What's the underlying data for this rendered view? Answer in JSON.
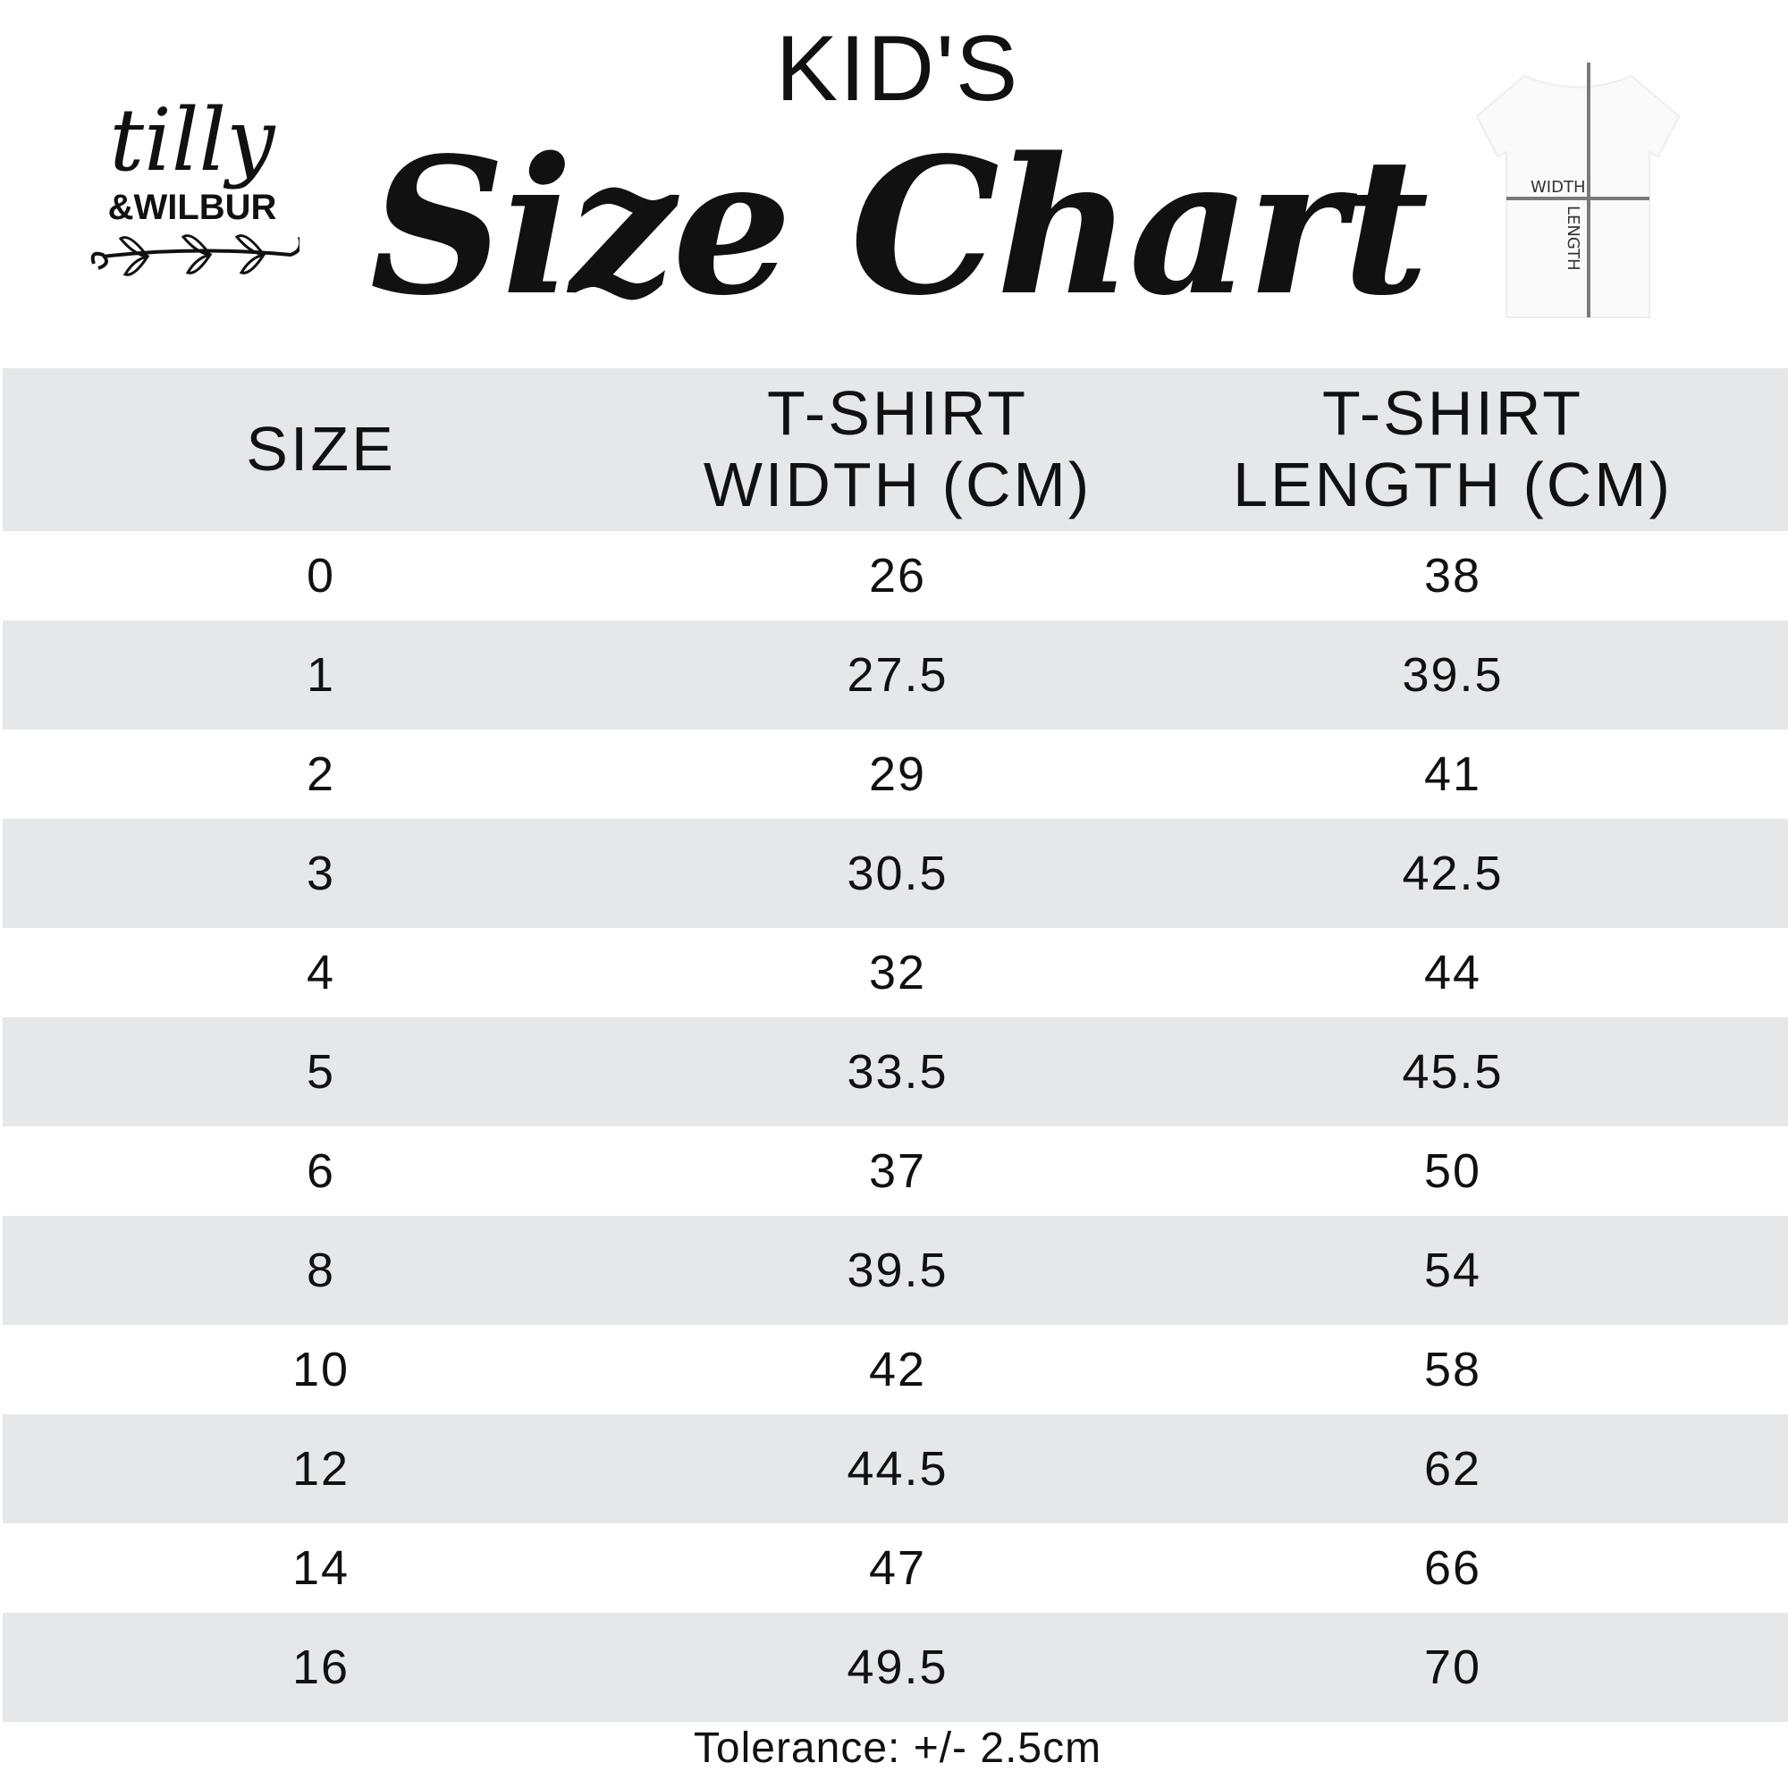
{
  "logo": {
    "text": "tilly & WILBUR"
  },
  "header": {
    "kicker": "KID'S",
    "title": "Size Chart"
  },
  "shirt_diagram": {
    "width_label": "WIDTH",
    "length_label": "LENGTH"
  },
  "table": {
    "columns": [
      {
        "line1": "SIZE",
        "line2": ""
      },
      {
        "line1": "T-SHIRT",
        "line2": "WIDTH (CM)"
      },
      {
        "line1": "T-SHIRT",
        "line2": "LENGTH (CM)"
      }
    ],
    "rows": [
      [
        "0",
        "26",
        "38"
      ],
      [
        "1",
        "27.5",
        "39.5"
      ],
      [
        "2",
        "29",
        "41"
      ],
      [
        "3",
        "30.5",
        "42.5"
      ],
      [
        "4",
        "32",
        "44"
      ],
      [
        "5",
        "33.5",
        "45.5"
      ],
      [
        "6",
        "37",
        "50"
      ],
      [
        "8",
        "39.5",
        "54"
      ],
      [
        "10",
        "42",
        "58"
      ],
      [
        "12",
        "44.5",
        "62"
      ],
      [
        "14",
        "47",
        "66"
      ],
      [
        "16",
        "49.5",
        "70"
      ]
    ]
  },
  "footer": {
    "tolerance": "Tolerance: +/- 2.5cm"
  },
  "colors": {
    "row_shade": "#e6e7e9",
    "text": "#111111",
    "diagram_line": "#7a7a7a"
  }
}
